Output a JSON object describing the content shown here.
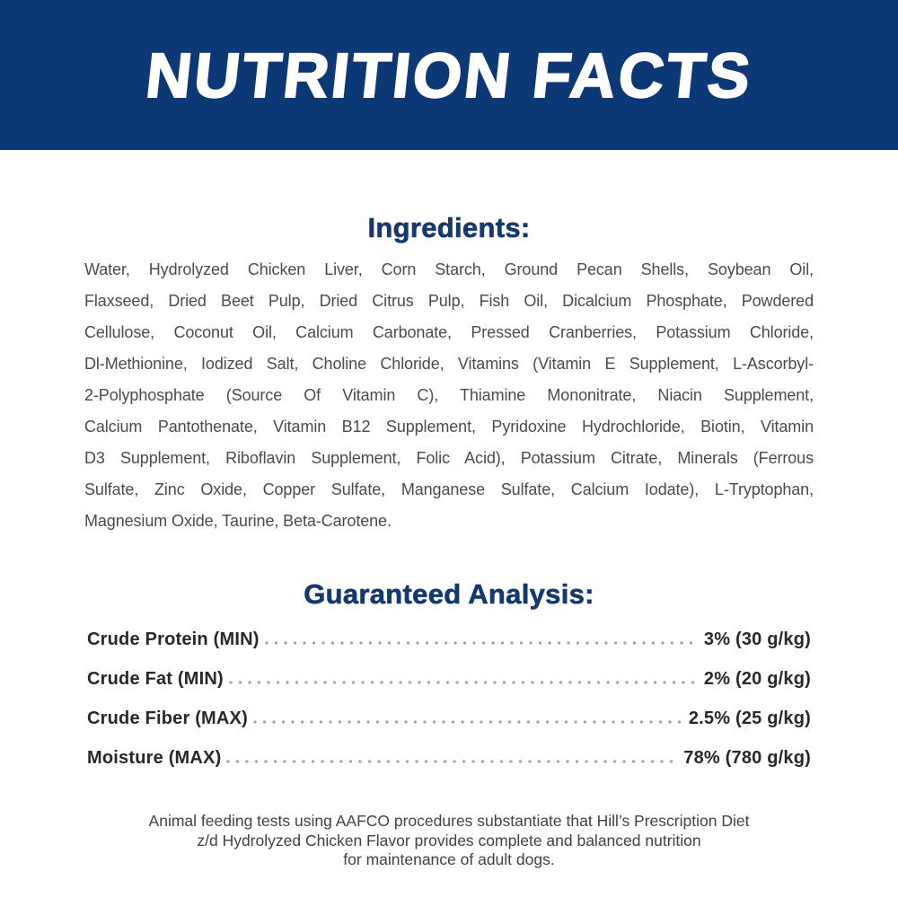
{
  "header": {
    "title": "NUTRITION FACTS"
  },
  "ingredients": {
    "heading": "Ingredients:",
    "lines": [
      "Water, Hydrolyzed Chicken Liver, Corn Starch, Ground Pecan Shells, Soybean Oil,",
      "Flaxseed, Dried Beet Pulp, Dried Citrus Pulp, Fish Oil, Dicalcium Phosphate, Powdered",
      "Cellulose, Coconut Oil, Calcium Carbonate, Pressed Cranberries, Potassium Chloride,",
      "Dl-Methionine, Iodized Salt, Choline Chloride, Vitamins (Vitamin E Supplement, L-Ascorbyl-",
      "2-Polyphosphate (Source Of Vitamin C), Thiamine Mononitrate, Niacin Supplement,",
      "Calcium Pantothenate, Vitamin B12 Supplement, Pyridoxine Hydrochloride, Biotin, Vitamin",
      "D3 Supplement, Riboflavin Supplement, Folic Acid), Potassium Citrate, Minerals (Ferrous",
      "Sulfate, Zinc Oxide, Copper Sulfate, Manganese Sulfate, Calcium Iodate), L-Tryptophan,",
      "Magnesium Oxide, Taurine, Beta-Carotene."
    ]
  },
  "guaranteed_analysis": {
    "heading": "Guaranteed Analysis:",
    "rows": [
      {
        "label": "Crude Protein (MIN)",
        "value": "3% (30 g/kg)"
      },
      {
        "label": "Crude Fat (MIN)",
        "value": "2% (20 g/kg)"
      },
      {
        "label": "Crude Fiber (MAX)",
        "value": "2.5% (25 g/kg)"
      },
      {
        "label": "Moisture (MAX)",
        "value": "78% (780 g/kg)"
      }
    ]
  },
  "footer": {
    "lines": [
      "Animal feeding tests using AAFCO procedures substantiate that Hill’s Prescription Diet",
      "z/d Hydrolyzed Chicken Flavor provides complete and balanced nutrition",
      "for maintenance of adult dogs."
    ]
  },
  "colors": {
    "banner_background": "#0c3876",
    "banner_text": "#ffffff",
    "heading_text": "#14386f",
    "body_text": "#4b4b4b",
    "analysis_text": "#282828",
    "dot_leader": "#a3a3a3",
    "footer_text": "#424242",
    "page_background": "#ffffff"
  }
}
